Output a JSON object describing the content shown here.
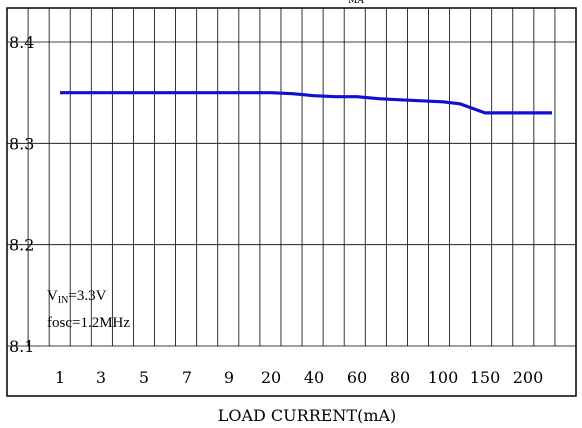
{
  "chart_data": {
    "type": "line",
    "title_fragment": "MA",
    "xlabel": "LOAD CURRENT(mA)",
    "ylabel": "",
    "x_scale": "categorical",
    "x_ticks": [
      "1",
      "3",
      "5",
      "7",
      "9",
      "20",
      "40",
      "60",
      "80",
      "100",
      "150",
      "200"
    ],
    "ylim": [
      8.1,
      8.4
    ],
    "y_ticks": [
      8.1,
      8.2,
      8.3,
      8.4
    ],
    "y_tick_labels": [
      "8.1",
      "8.2",
      "8.3",
      "8.4"
    ],
    "grid": true,
    "series": [
      {
        "color": "#1010d0",
        "x": [
          1,
          3,
          5,
          7,
          9,
          20,
          30,
          40,
          50,
          60,
          70,
          80,
          90,
          100,
          120,
          150,
          175,
          200,
          225
        ],
        "y": [
          8.35,
          8.35,
          8.35,
          8.35,
          8.35,
          8.35,
          8.349,
          8.347,
          8.346,
          8.346,
          8.344,
          8.343,
          8.342,
          8.341,
          8.339,
          8.33,
          8.33,
          8.33,
          8.33
        ]
      }
    ],
    "annotations": {
      "vin_main": "V",
      "vin_sub": "IN",
      "vin_value": "=3.3V",
      "fosc": "fosc=1.2MHz"
    }
  }
}
